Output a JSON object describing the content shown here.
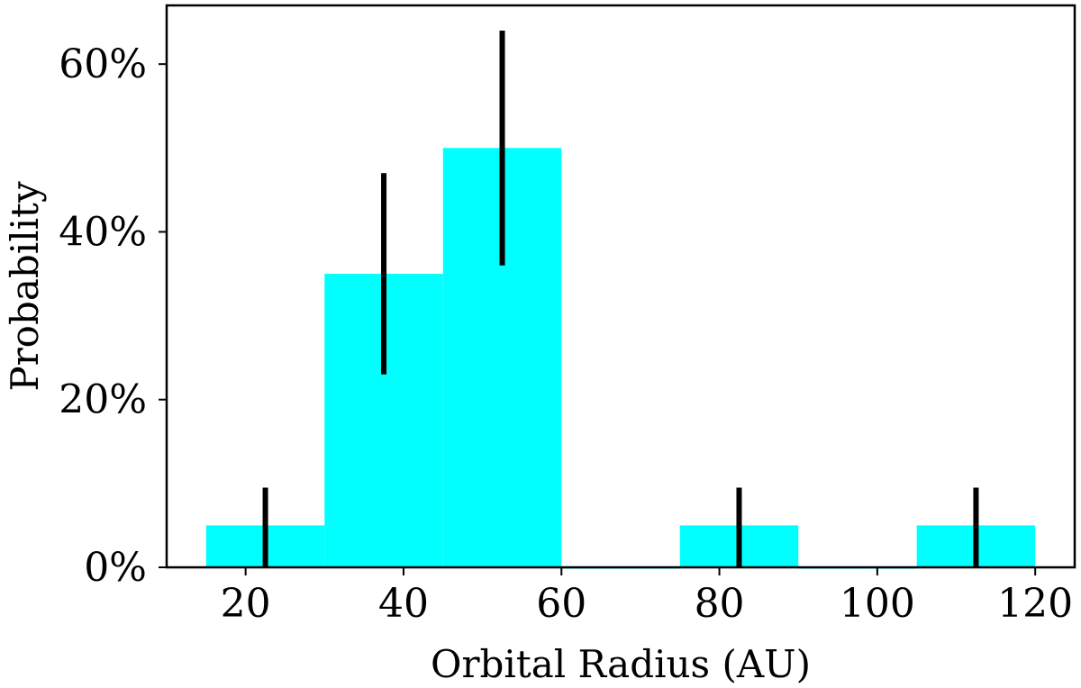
{
  "chart_data": {
    "type": "bar",
    "title": "",
    "xlabel": "Orbital Radius (AU)",
    "ylabel": "Probability",
    "xlim": [
      10,
      125
    ],
    "ylim": [
      0,
      0.67
    ],
    "bar_color": "#00ffff",
    "error_color": "#000000",
    "grid": false,
    "x_ticks": [
      {
        "value": 20,
        "label": "20"
      },
      {
        "value": 40,
        "label": "40"
      },
      {
        "value": 60,
        "label": "60"
      },
      {
        "value": 80,
        "label": "80"
      },
      {
        "value": 100,
        "label": "100"
      },
      {
        "value": 120,
        "label": "120"
      }
    ],
    "y_ticks": [
      {
        "value": 0,
        "label": "0%"
      },
      {
        "value": 0.2,
        "label": "20%"
      },
      {
        "value": 0.4,
        "label": "40%"
      },
      {
        "value": 0.6,
        "label": "60%"
      }
    ],
    "bins": [
      {
        "x0": 15,
        "x1": 30,
        "value": 0.05,
        "err_low": 0.0,
        "err_high": 0.095
      },
      {
        "x0": 30,
        "x1": 45,
        "value": 0.35,
        "err_low": 0.23,
        "err_high": 0.47
      },
      {
        "x0": 45,
        "x1": 60,
        "value": 0.5,
        "err_low": 0.36,
        "err_high": 0.64
      },
      {
        "x0": 60,
        "x1": 75,
        "value": 0.0
      },
      {
        "x0": 75,
        "x1": 90,
        "value": 0.05,
        "err_low": 0.0,
        "err_high": 0.095
      },
      {
        "x0": 90,
        "x1": 105,
        "value": 0.0
      },
      {
        "x0": 105,
        "x1": 120,
        "value": 0.05,
        "err_low": 0.0,
        "err_high": 0.095
      }
    ]
  }
}
